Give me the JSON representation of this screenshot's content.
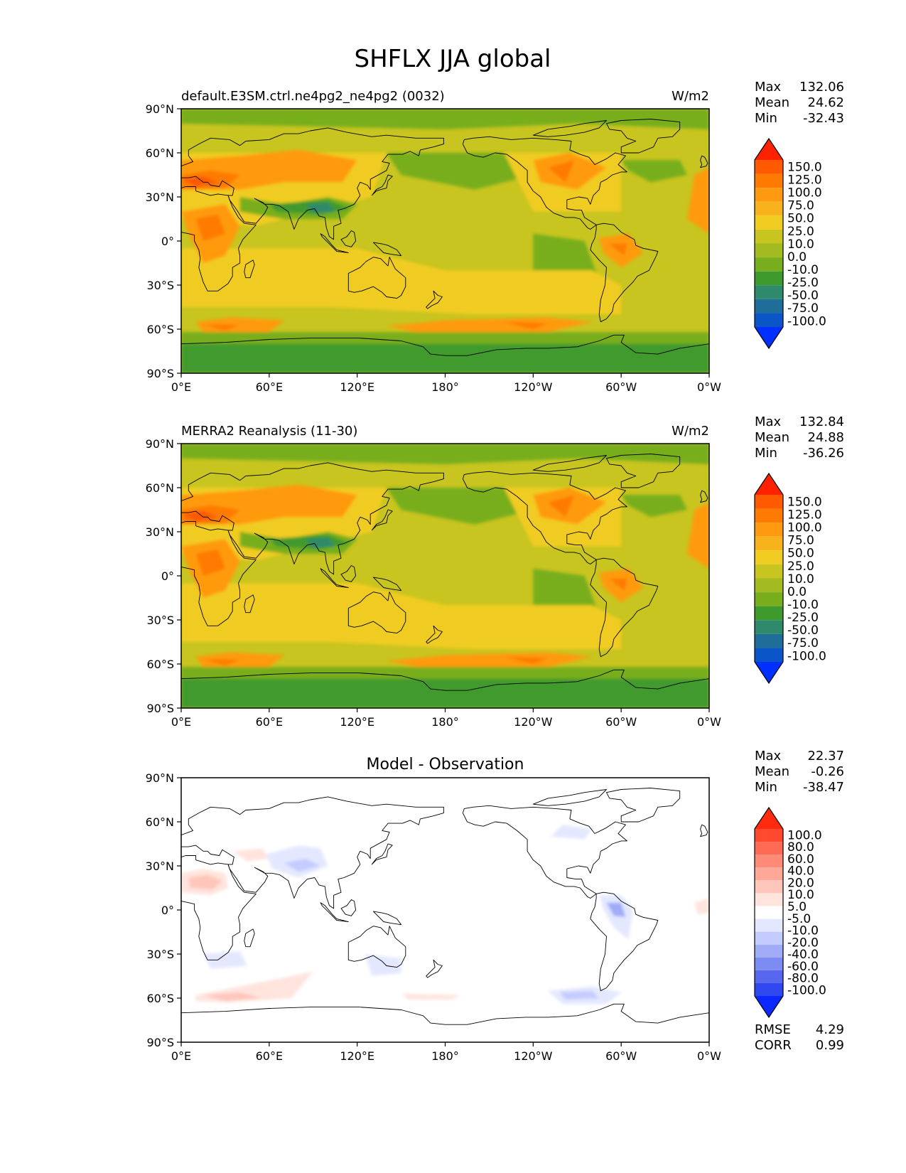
{
  "title": "SHFLX JJA global",
  "axes": {
    "lat_labels": [
      "90°N",
      "60°N",
      "30°N",
      "0°",
      "30°S",
      "60°S",
      "90°S"
    ],
    "lon_labels": [
      "0°E",
      "60°E",
      "120°E",
      "180°",
      "120°W",
      "60°W",
      "0°W"
    ]
  },
  "panels": [
    {
      "id": "model",
      "title_left": "default.E3SM.ctrl.ne4pg2_ne4pg2 (0032)",
      "title_center": "",
      "units": "W/m2",
      "stats": [
        [
          "Max",
          "132.06"
        ],
        [
          "Mean",
          "24.62"
        ],
        [
          "Min",
          "-32.43"
        ]
      ],
      "levels": [
        "150.0",
        "125.0",
        "100.0",
        "75.0",
        "50.0",
        "25.0",
        "10.0",
        "0.0",
        "-10.0",
        "-25.0",
        "-50.0",
        "-75.0",
        "-100.0"
      ],
      "colors": [
        "#ff2200",
        "#ff5a00",
        "#ff7a00",
        "#ff9a10",
        "#f7b21c",
        "#f0cc20",
        "#c8c420",
        "#a3ba20",
        "#78ae1e",
        "#3f9a2e",
        "#2e8a6a",
        "#1f6e9a",
        "#0a55c8",
        "#0030ff"
      ],
      "extra": []
    },
    {
      "id": "obs",
      "title_left": "MERRA2 Reanalysis (11-30)",
      "title_center": "",
      "units": "W/m2",
      "stats": [
        [
          "Max",
          "132.84"
        ],
        [
          "Mean",
          "24.88"
        ],
        [
          "Min",
          "-36.26"
        ]
      ],
      "levels": [
        "150.0",
        "125.0",
        "100.0",
        "75.0",
        "50.0",
        "25.0",
        "10.0",
        "0.0",
        "-10.0",
        "-25.0",
        "-50.0",
        "-75.0",
        "-100.0"
      ],
      "colors": [
        "#ff2200",
        "#ff5a00",
        "#ff7a00",
        "#ff9a10",
        "#f7b21c",
        "#f0cc20",
        "#c8c420",
        "#a3ba20",
        "#78ae1e",
        "#3f9a2e",
        "#2e8a6a",
        "#1f6e9a",
        "#0a55c8",
        "#0030ff"
      ],
      "extra": []
    },
    {
      "id": "diff",
      "title_left": "",
      "title_center": "Model - Observation",
      "units": "",
      "stats": [
        [
          "Max",
          "22.37"
        ],
        [
          "Mean",
          "-0.26"
        ],
        [
          "Min",
          "-38.47"
        ]
      ],
      "levels": [
        "100.0",
        "80.0",
        "60.0",
        "40.0",
        "20.0",
        "10.0",
        "5.0",
        "-5.0",
        "-10.0",
        "-20.0",
        "-40.0",
        "-60.0",
        "-80.0",
        "-100.0"
      ],
      "colors": [
        "#ff2a10",
        "#ff4a30",
        "#ff6a55",
        "#ff8a78",
        "#ffa898",
        "#ffc6bc",
        "#ffe4de",
        "#ffffff",
        "#e4e8ff",
        "#c4ccff",
        "#a0acf8",
        "#7c8cf2",
        "#5868ee",
        "#3048f0",
        "#0a28ff"
      ],
      "extra": [
        [
          "RMSE",
          "4.29"
        ],
        [
          "CORR",
          "0.99"
        ]
      ]
    }
  ]
}
